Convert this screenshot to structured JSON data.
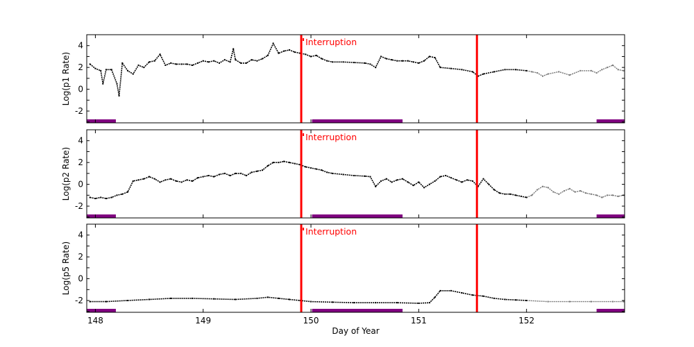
{
  "chart_data": [
    {
      "type": "scatter",
      "ylabel": "Log(p1 Rate)",
      "xlim": [
        147.92,
        152.91
      ],
      "ylim": [
        -3.08,
        5
      ],
      "yticks": [
        -2,
        0,
        2,
        4
      ],
      "annotation": "Interruption",
      "interruptions": [
        149.91,
        151.54
      ],
      "bars": [
        [
          147.92,
          148.19
        ],
        [
          150.01,
          150.85
        ],
        [
          152.65,
          152.91
        ]
      ],
      "gray_after": 152.0,
      "x": [
        147.95,
        148.0,
        148.05,
        148.07,
        148.1,
        148.15,
        148.2,
        148.22,
        148.25,
        148.3,
        148.35,
        148.4,
        148.45,
        148.5,
        148.55,
        148.6,
        148.65,
        148.7,
        148.75,
        148.8,
        148.85,
        148.9,
        148.95,
        149.0,
        149.05,
        149.1,
        149.15,
        149.2,
        149.25,
        149.28,
        149.3,
        149.35,
        149.4,
        149.45,
        149.5,
        149.55,
        149.6,
        149.65,
        149.7,
        149.75,
        149.8,
        149.85,
        149.9,
        149.95,
        150.0,
        150.05,
        150.1,
        150.15,
        150.2,
        150.3,
        150.4,
        150.5,
        150.55,
        150.6,
        150.65,
        150.7,
        150.75,
        150.8,
        150.85,
        150.9,
        150.95,
        151.0,
        151.05,
        151.1,
        151.15,
        151.2,
        151.3,
        151.4,
        151.5,
        151.55,
        151.6,
        151.7,
        151.8,
        151.9,
        152.0,
        152.05,
        152.1,
        152.15,
        152.2,
        152.3,
        152.4,
        152.5,
        152.6,
        152.65,
        152.7,
        152.75,
        152.8,
        152.85,
        152.9
      ],
      "y": [
        2.3,
        1.9,
        1.7,
        0.5,
        1.8,
        1.8,
        0.5,
        -0.6,
        2.4,
        1.7,
        1.4,
        2.2,
        2.0,
        2.5,
        2.6,
        3.2,
        2.2,
        2.4,
        2.3,
        2.3,
        2.3,
        2.2,
        2.4,
        2.6,
        2.5,
        2.6,
        2.4,
        2.7,
        2.5,
        3.7,
        2.7,
        2.4,
        2.4,
        2.7,
        2.6,
        2.8,
        3.1,
        4.2,
        3.3,
        3.5,
        3.6,
        3.4,
        3.3,
        3.2,
        3.0,
        3.1,
        2.8,
        2.6,
        2.5,
        2.5,
        2.45,
        2.4,
        2.3,
        2.0,
        3.0,
        2.8,
        2.7,
        2.6,
        2.6,
        2.6,
        2.5,
        2.4,
        2.6,
        3.0,
        2.9,
        2.0,
        1.9,
        1.8,
        1.6,
        1.2,
        1.4,
        1.6,
        1.8,
        1.8,
        1.7,
        1.6,
        1.5,
        1.2,
        1.4,
        1.6,
        1.3,
        1.7,
        1.7,
        1.5,
        1.8,
        2.0,
        2.2,
        1.8,
        1.7
      ]
    },
    {
      "type": "scatter",
      "ylabel": "Log(p2 Rate)",
      "xlim": [
        147.92,
        152.91
      ],
      "ylim": [
        -3.08,
        5
      ],
      "yticks": [
        -2,
        0,
        2,
        4
      ],
      "annotation": "Interruption",
      "interruptions": [
        149.91,
        151.54
      ],
      "bars": [
        [
          147.92,
          148.19
        ],
        [
          150.01,
          150.85
        ],
        [
          152.65,
          152.91
        ]
      ],
      "gray_after": 152.0,
      "x": [
        147.95,
        148.0,
        148.05,
        148.1,
        148.15,
        148.2,
        148.25,
        148.3,
        148.35,
        148.4,
        148.45,
        148.5,
        148.55,
        148.6,
        148.65,
        148.7,
        148.75,
        148.8,
        148.85,
        148.9,
        148.95,
        149.0,
        149.05,
        149.1,
        149.15,
        149.2,
        149.25,
        149.3,
        149.35,
        149.4,
        149.45,
        149.5,
        149.55,
        149.6,
        149.65,
        149.7,
        149.75,
        149.8,
        149.85,
        149.9,
        149.95,
        150.0,
        150.05,
        150.1,
        150.15,
        150.2,
        150.3,
        150.4,
        150.5,
        150.55,
        150.6,
        150.65,
        150.7,
        150.75,
        150.8,
        150.85,
        150.9,
        150.95,
        151.0,
        151.05,
        151.1,
        151.15,
        151.2,
        151.25,
        151.3,
        151.35,
        151.4,
        151.45,
        151.5,
        151.55,
        151.6,
        151.65,
        151.7,
        151.75,
        151.8,
        151.85,
        151.9,
        151.95,
        152.0,
        152.05,
        152.1,
        152.15,
        152.2,
        152.25,
        152.3,
        152.35,
        152.4,
        152.45,
        152.5,
        152.55,
        152.6,
        152.65,
        152.7,
        152.75,
        152.8,
        152.85,
        152.9
      ],
      "y": [
        -1.2,
        -1.3,
        -1.2,
        -1.3,
        -1.2,
        -1.0,
        -0.9,
        -0.7,
        0.3,
        0.4,
        0.5,
        0.7,
        0.5,
        0.2,
        0.4,
        0.5,
        0.3,
        0.2,
        0.4,
        0.3,
        0.6,
        0.7,
        0.8,
        0.7,
        0.9,
        1.0,
        0.8,
        1.0,
        1.0,
        0.8,
        1.1,
        1.2,
        1.3,
        1.7,
        2.0,
        2.0,
        2.1,
        2.0,
        1.9,
        1.8,
        1.6,
        1.5,
        1.4,
        1.3,
        1.1,
        1.0,
        0.9,
        0.8,
        0.75,
        0.7,
        -0.2,
        0.3,
        0.5,
        0.2,
        0.4,
        0.5,
        0.2,
        -0.1,
        0.2,
        -0.3,
        0.0,
        0.3,
        0.7,
        0.8,
        0.6,
        0.4,
        0.2,
        0.4,
        0.3,
        -0.2,
        0.5,
        0.0,
        -0.5,
        -0.8,
        -0.9,
        -0.9,
        -1.0,
        -1.1,
        -1.2,
        -1.0,
        -0.5,
        -0.2,
        -0.3,
        -0.7,
        -0.9,
        -0.6,
        -0.4,
        -0.7,
        -0.6,
        -0.8,
        -0.9,
        -1.0,
        -1.2,
        -1.0,
        -1.0,
        -1.1,
        -1.0
      ]
    },
    {
      "type": "scatter",
      "ylabel": "Log(p5 Rate)",
      "xlabel": "Day of Year",
      "xticks": [
        148,
        149,
        150,
        151,
        152
      ],
      "xlim": [
        147.92,
        152.91
      ],
      "ylim": [
        -3.08,
        5
      ],
      "yticks": [
        -2,
        0,
        2,
        4
      ],
      "annotation": "Interruption",
      "interruptions": [
        149.91,
        151.54
      ],
      "bars": [
        [
          147.92,
          148.19
        ],
        [
          150.01,
          150.85
        ],
        [
          152.65,
          152.91
        ]
      ],
      "gray_after": 152.0,
      "x": [
        147.95,
        148.1,
        148.3,
        148.5,
        148.7,
        148.9,
        149.1,
        149.3,
        149.5,
        149.6,
        149.7,
        149.8,
        149.9,
        150.0,
        150.2,
        150.4,
        150.6,
        150.8,
        151.0,
        151.1,
        151.15,
        151.2,
        151.3,
        151.4,
        151.5,
        151.6,
        151.7,
        151.8,
        151.9,
        152.0,
        152.2,
        152.4,
        152.6,
        152.8,
        152.9
      ],
      "y": [
        -2.1,
        -2.1,
        -2.0,
        -1.9,
        -1.8,
        -1.8,
        -1.85,
        -1.9,
        -1.8,
        -1.7,
        -1.8,
        -1.9,
        -2.0,
        -2.1,
        -2.15,
        -2.2,
        -2.2,
        -2.2,
        -2.25,
        -2.2,
        -1.7,
        -1.1,
        -1.1,
        -1.3,
        -1.5,
        -1.6,
        -1.8,
        -1.9,
        -1.95,
        -2.0,
        -2.1,
        -2.1,
        -2.1,
        -2.1,
        -2.1
      ]
    }
  ],
  "colors": {
    "points": "#000000",
    "points_late": "#777777",
    "interruption": "#ff0000",
    "bars": "#800080"
  }
}
